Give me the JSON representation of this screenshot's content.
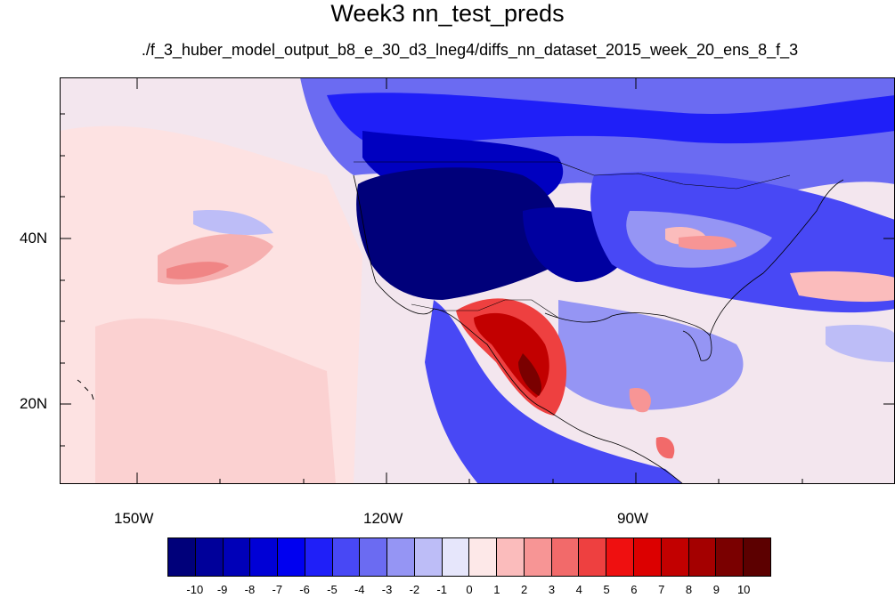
{
  "title": "Week3 nn_test_preds",
  "subtitle": "./f_3_huber_model_output_b8_e_30_d3_lneg4/diffs_nn_dataset_2015_week_20_ens_8_f_3",
  "lat_labels": [
    "40N",
    "20N"
  ],
  "lon_labels": [
    "150W",
    "120W",
    "90W"
  ],
  "colorbar": {
    "levels": [
      "-10",
      "-9",
      "-8",
      "-7",
      "-6",
      "-5",
      "-4",
      "-3",
      "-2",
      "-1",
      "0",
      "1",
      "2",
      "3",
      "4",
      "5",
      "6",
      "7",
      "8",
      "9",
      "10"
    ],
    "colors": [
      "#00007a",
      "#00009a",
      "#0000b8",
      "#0000d6",
      "#0000f0",
      "#1f1ff8",
      "#4848f5",
      "#6b6bf2",
      "#9595f4",
      "#bdbdf7",
      "#e6e6fb",
      "#fde8e8",
      "#fbbcbc",
      "#f79595",
      "#f26a6a",
      "#ee4040",
      "#ef1010",
      "#dc0000",
      "#c20000",
      "#a40000",
      "#7a0000",
      "#5c0000"
    ]
  },
  "map": {
    "extent": {
      "lon_min": -160,
      "lon_max": -60,
      "lat_min": 10,
      "lat_max": 59
    },
    "background_color": "#f2f3fb"
  }
}
